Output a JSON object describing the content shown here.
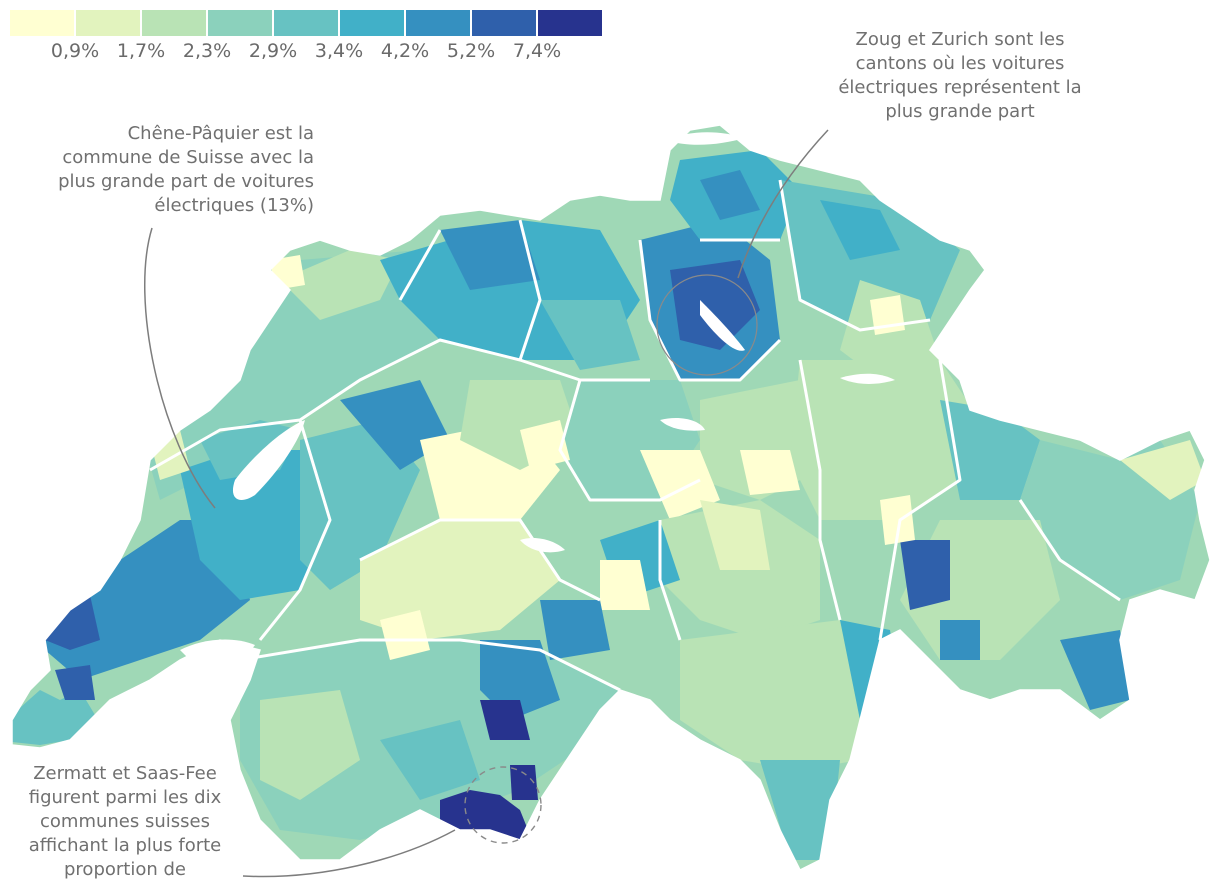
{
  "legend": {
    "colors": [
      "#ffffd2",
      "#e2f3be",
      "#b9e3b5",
      "#8bd1bc",
      "#67c2c2",
      "#41b0c8",
      "#3590c0",
      "#2f60ab",
      "#27338e"
    ],
    "labels": [
      "0,9%",
      "1,7%",
      "2,3%",
      "2,9%",
      "3,4%",
      "4,2%",
      "5,2%",
      "7,4%"
    ]
  },
  "annotations": {
    "zoug_zurich": {
      "lines": [
        "Zoug et Zurich sont les",
        "cantons où les voitures",
        "électriques représentent la",
        "plus grande part"
      ]
    },
    "chene_paquier": {
      "lines": [
        "Chêne-Pâquier est la",
        "commune de Suisse avec la",
        "plus grande part de voitures",
        "électriques (13%)"
      ]
    },
    "zermatt_saasfee": {
      "lines": [
        "Zermatt et Saas-Fee",
        "figurent parmi les dix",
        "communes suisses",
        "affichant la plus forte",
        "proportion de"
      ]
    }
  },
  "map": {
    "boundary_color": "#ffffff",
    "lake_color": "#ffffff",
    "annotation_line_color": "#7d7d7d"
  }
}
